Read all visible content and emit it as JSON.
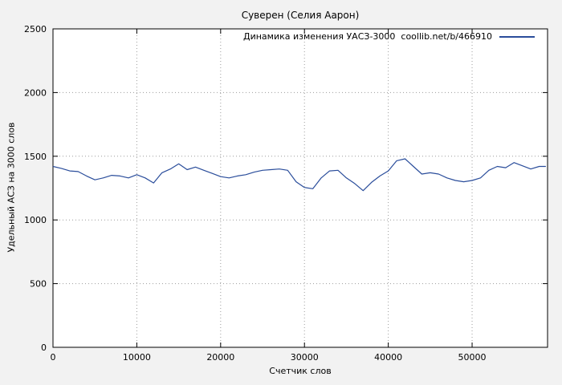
{
  "colors": {
    "page_background": "#f2f2f2",
    "plot_background": "#ffffff",
    "grid": "#9c9c9c",
    "border": "#000000",
    "line": "#2a4d9b",
    "text": "#000000"
  },
  "chart_data": {
    "type": "line",
    "title": "Суверен (Селия Аарон)",
    "xlabel": "Счетчик слов",
    "ylabel": "Удельный АСЗ на 3000 слов",
    "xlim": [
      0,
      59000
    ],
    "ylim": [
      0,
      2500
    ],
    "xticks": [
      0,
      10000,
      20000,
      30000,
      40000,
      50000
    ],
    "yticks": [
      0,
      500,
      1000,
      1500,
      2000,
      2500
    ],
    "grid": true,
    "legend_position": "top-right-inside",
    "series": [
      {
        "name": "Динамика изменения УАСЗ-3000  coollib.net/b/466910",
        "x": [
          0,
          1000,
          2000,
          3000,
          4000,
          5000,
          6000,
          7000,
          8000,
          9000,
          10000,
          11000,
          12000,
          13000,
          14000,
          15000,
          16000,
          17000,
          18000,
          19000,
          20000,
          21000,
          22000,
          23000,
          24000,
          25000,
          26000,
          27000,
          28000,
          29000,
          30000,
          31000,
          32000,
          33000,
          34000,
          35000,
          36000,
          37000,
          38000,
          39000,
          40000,
          41000,
          42000,
          43000,
          44000,
          45000,
          46000,
          47000,
          48000,
          49000,
          50000,
          51000,
          52000,
          53000,
          54000,
          55000,
          56000,
          57000,
          58000,
          58800
        ],
        "y": [
          1420,
          1405,
          1385,
          1380,
          1345,
          1315,
          1330,
          1350,
          1345,
          1330,
          1355,
          1330,
          1290,
          1370,
          1400,
          1440,
          1395,
          1415,
          1390,
          1365,
          1340,
          1330,
          1345,
          1355,
          1375,
          1390,
          1395,
          1400,
          1390,
          1300,
          1255,
          1245,
          1330,
          1385,
          1390,
          1330,
          1285,
          1230,
          1295,
          1345,
          1385,
          1465,
          1480,
          1420,
          1360,
          1370,
          1360,
          1330,
          1310,
          1300,
          1310,
          1330,
          1390,
          1420,
          1410,
          1450,
          1425,
          1400,
          1420,
          1420
        ]
      }
    ]
  }
}
